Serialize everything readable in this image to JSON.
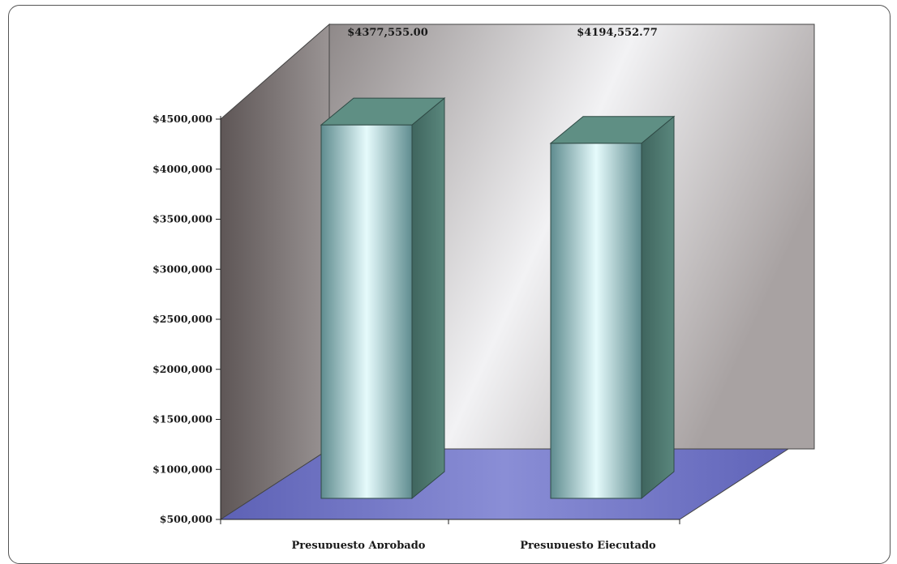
{
  "chart_data": {
    "type": "bar",
    "style": "3d-column",
    "categories": [
      "Presupuesto Aprobado",
      "Presupuesto Ejecutado"
    ],
    "values": [
      4377555.0,
      4194552.77
    ],
    "data_labels": [
      "$4377,555.00",
      "$4194,552.77"
    ],
    "title": "",
    "xlabel": "",
    "ylabel": "",
    "ylim": [
      500000,
      4500000
    ],
    "yticks": [
      500000,
      1000000,
      1500000,
      2000000,
      2500000,
      3000000,
      3500000,
      4000000,
      4500000
    ],
    "ytick_labels": [
      "$500,000",
      "$1000,000",
      "$1500,000",
      "$2000,000",
      "$2500,000",
      "$3000,000",
      "$3500,000",
      "$4000,000",
      "$4500,000"
    ],
    "grid": false,
    "legend": "none",
    "colors": {
      "bar_front": "#bfe6ea",
      "bar_side": "#4e7a72",
      "bar_top": "#5f8f84",
      "floor": "#6b6ec0",
      "back_wall": "#c8c3c3",
      "side_wall": "#6f6767"
    }
  }
}
